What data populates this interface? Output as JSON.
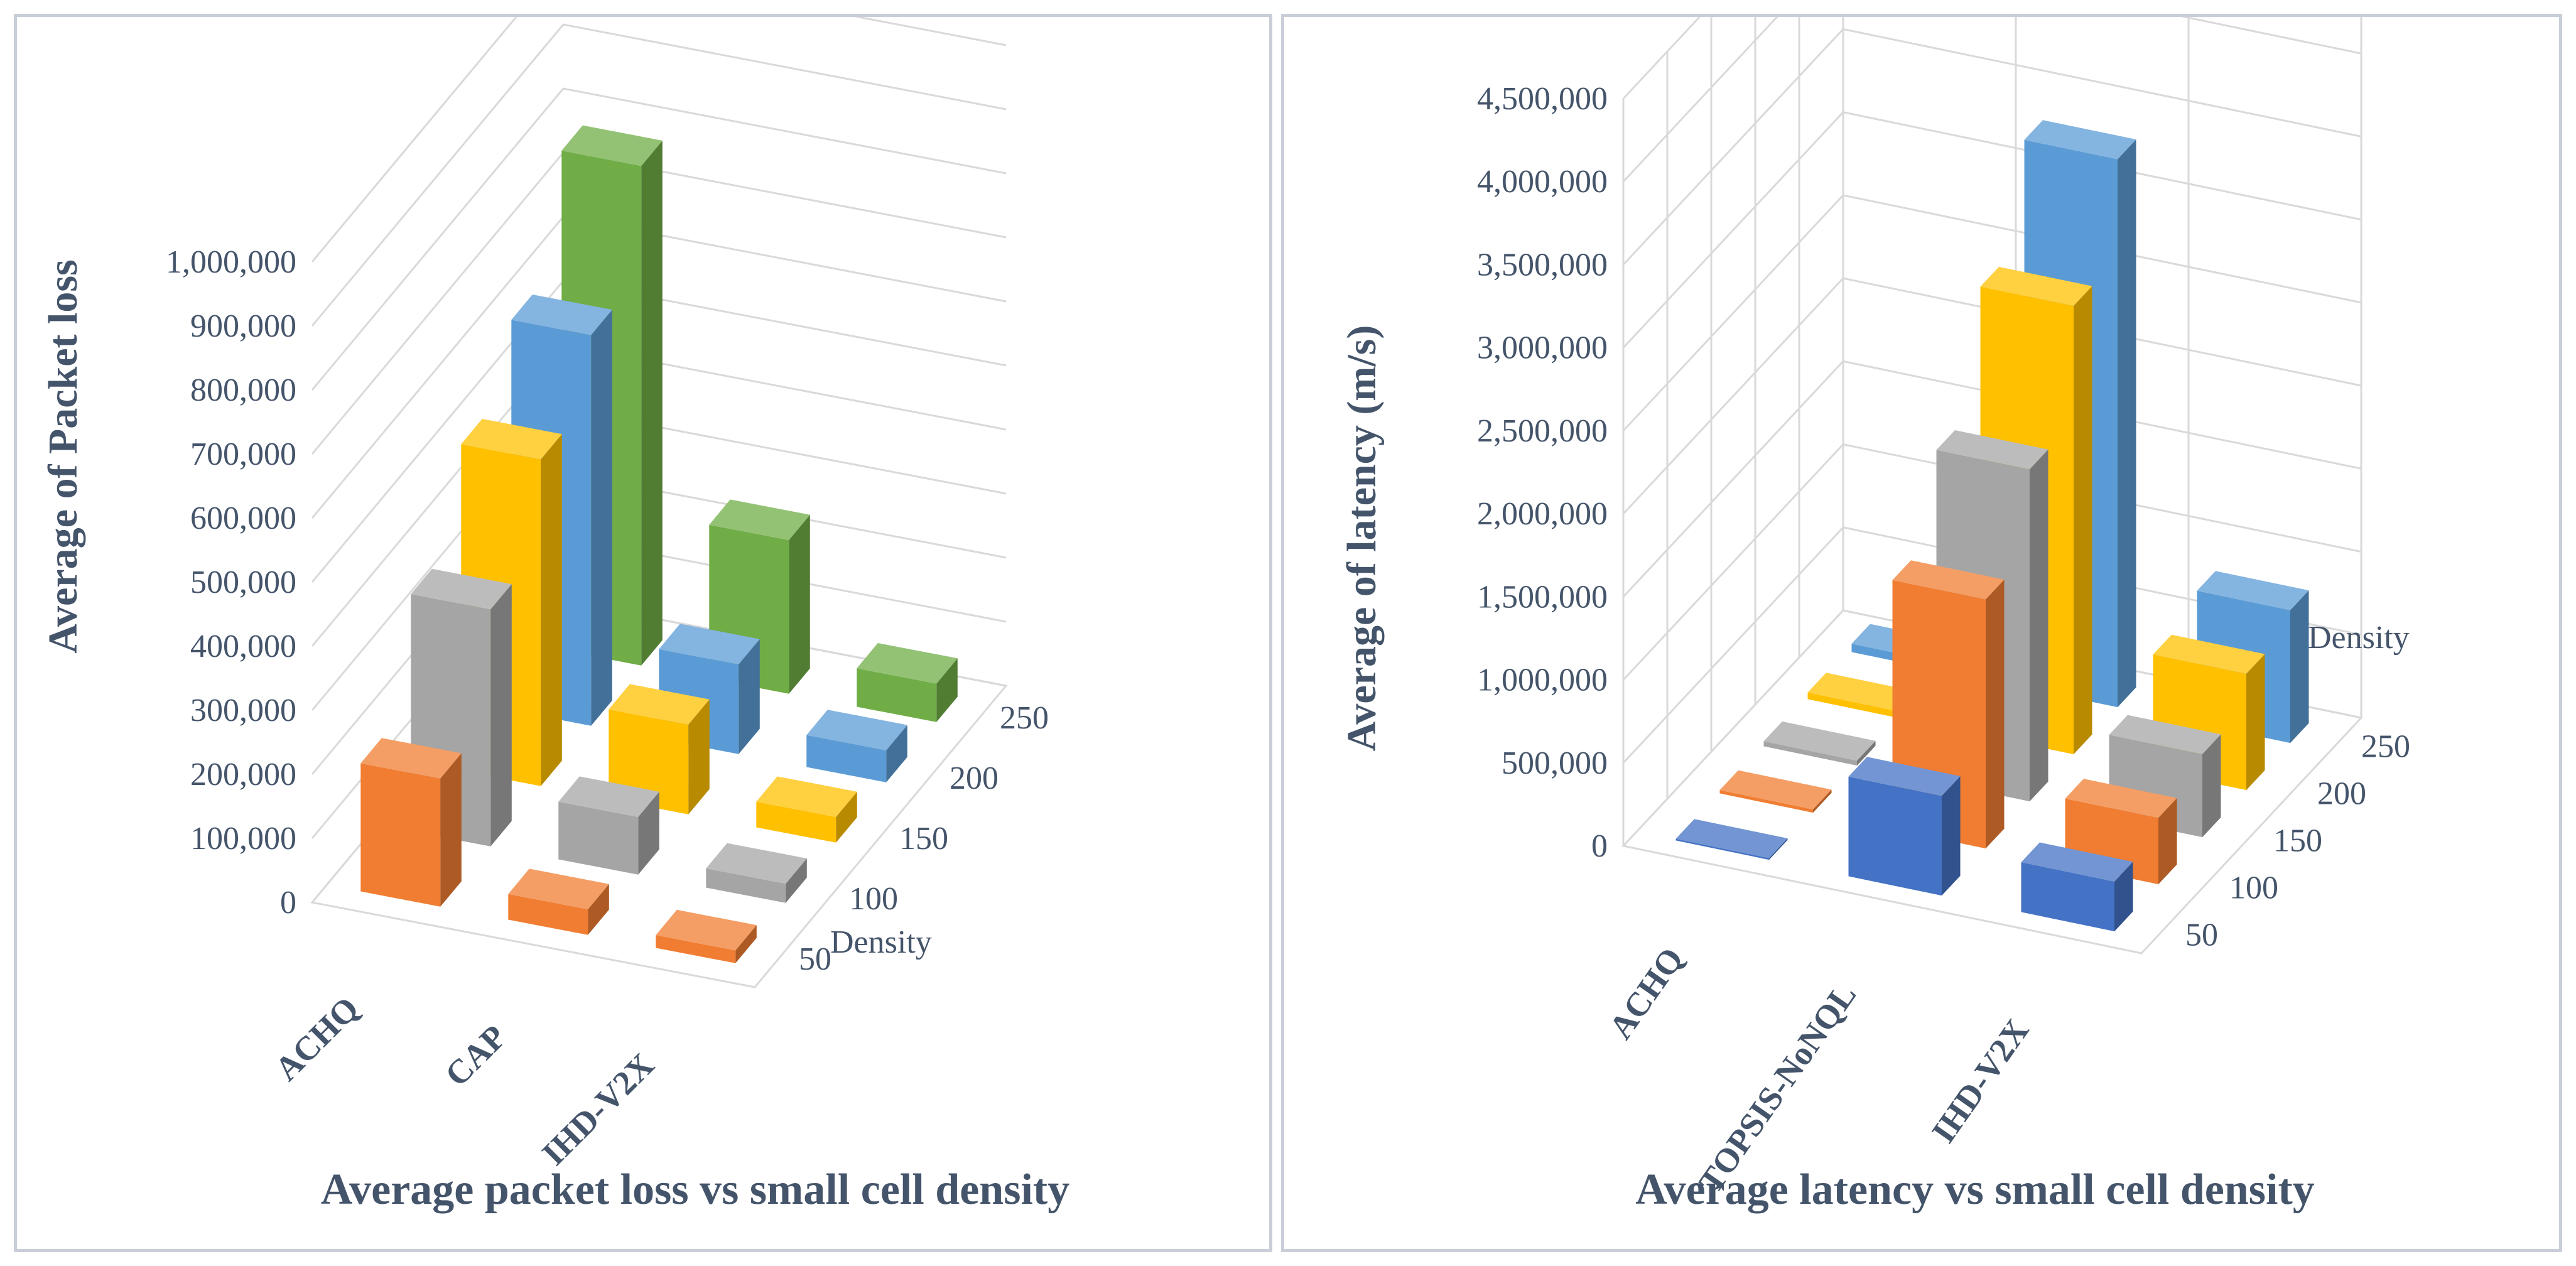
{
  "chart_data": [
    {
      "type": "bar",
      "subtype": "3d-clustered-column",
      "title": "Average packet loss vs small cell density",
      "ylabel": "Average of Packet loss",
      "depth_label": "Density",
      "ylim": [
        0,
        1000000
      ],
      "yticks": [
        "0",
        "100,000",
        "200,000",
        "300,000",
        "400,000",
        "500,000",
        "600,000",
        "700,000",
        "800,000",
        "900,000",
        "1,000,000"
      ],
      "categories": [
        "ACHQ",
        "CAP",
        "IHD-V2X"
      ],
      "series": [
        {
          "name": "50",
          "color": "#f07d32",
          "values": [
            200000,
            40000,
            20000
          ]
        },
        {
          "name": "100",
          "color": "#a5a5a5",
          "values": [
            370000,
            90000,
            30000
          ]
        },
        {
          "name": "150",
          "color": "#ffc000",
          "values": [
            510000,
            140000,
            40000
          ]
        },
        {
          "name": "200",
          "color": "#5b9bd5",
          "values": [
            610000,
            140000,
            50000
          ]
        },
        {
          "name": "250",
          "color": "#70ad47",
          "values": [
            780000,
            240000,
            60000
          ]
        }
      ],
      "depth_ticks": [
        "50",
        "100",
        "150",
        "200",
        "250"
      ]
    },
    {
      "type": "bar",
      "subtype": "3d-clustered-column",
      "title": "Average latency vs small cell density",
      "ylabel": "Average of latency (m/s)",
      "depth_label": "Density",
      "ylim": [
        0,
        4500000
      ],
      "yticks": [
        "0",
        "500,000",
        "1,000,000",
        "1,500,000",
        "2,000,000",
        "2,500,000",
        "3,000,000",
        "3,500,000",
        "4,000,000",
        "4,500,000"
      ],
      "categories": [
        "ACHQ",
        "TOPSIS-NoNQL",
        "IHD-V2X"
      ],
      "series": [
        {
          "name": "50",
          "color": "#4472c4",
          "values": [
            10000,
            600000,
            300000
          ]
        },
        {
          "name": "100",
          "color": "#f07d32",
          "values": [
            20000,
            1500000,
            400000
          ]
        },
        {
          "name": "150",
          "color": "#a5a5a5",
          "values": [
            30000,
            2000000,
            500000
          ]
        },
        {
          "name": "200",
          "color": "#ffc000",
          "values": [
            40000,
            2700000,
            700000
          ]
        },
        {
          "name": "250",
          "color": "#5b9bd5",
          "values": [
            50000,
            3300000,
            800000
          ]
        }
      ],
      "depth_ticks": [
        "50",
        "100",
        "150",
        "200",
        "250"
      ]
    }
  ]
}
